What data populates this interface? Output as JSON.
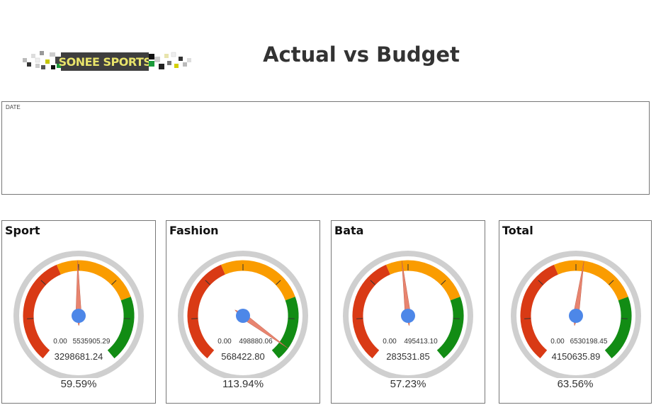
{
  "header": {
    "logo_text": "SONEE SPORTS",
    "title": "Actual vs Budget"
  },
  "date_slicer": {
    "label": "DATE"
  },
  "colors": {
    "band_red": "#d93a15",
    "band_orange": "#fa9c00",
    "band_green": "#128c14",
    "needle": "#e8846f",
    "hub": "#4d87e8",
    "bezel": "#cfcfcf"
  },
  "gauges": [
    {
      "title": "Sport",
      "min_label": "0.00",
      "max_label": "5535905.29",
      "value_label": "3298681.24",
      "percent": "59.59%",
      "fraction": 0.5959
    },
    {
      "title": "Fashion",
      "min_label": "0.00",
      "max_label": "498880.06",
      "value_label": "568422.80",
      "percent": "113.94%",
      "fraction": 1.1394
    },
    {
      "title": "Bata",
      "min_label": "0.00",
      "max_label": "495413.10",
      "value_label": "283531.85",
      "percent": "57.23%",
      "fraction": 0.5723
    },
    {
      "title": "Total",
      "min_label": "0.00",
      "max_label": "6530198.45",
      "value_label": "4150635.89",
      "percent": "63.56%",
      "fraction": 0.6356
    }
  ]
}
